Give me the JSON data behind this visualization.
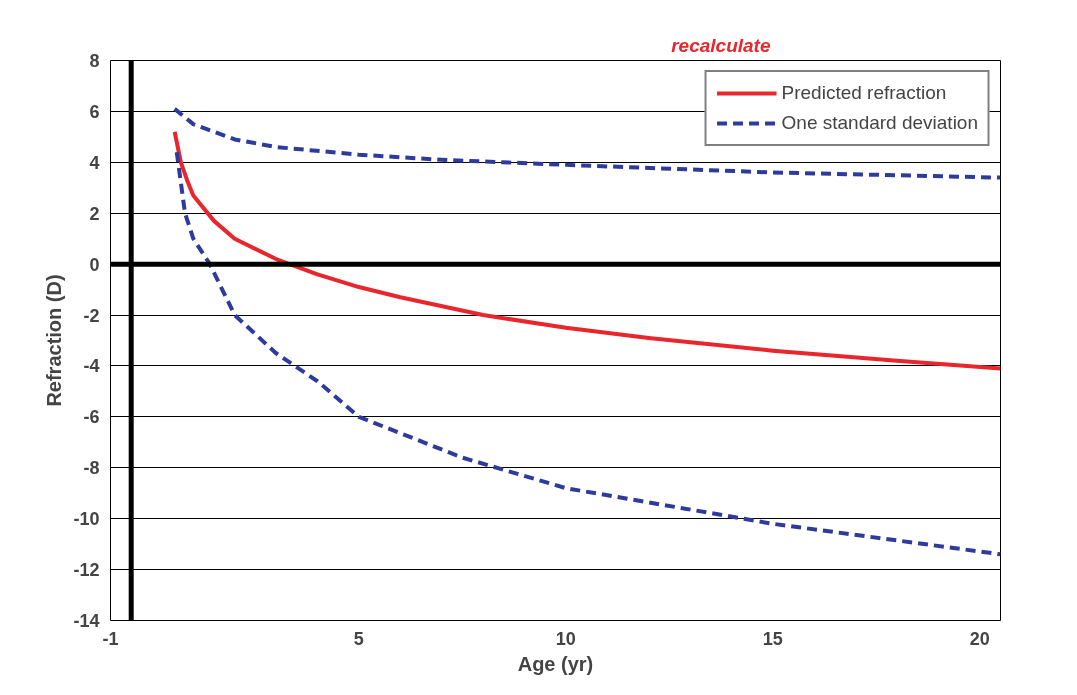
{
  "chart_data": {
    "type": "line",
    "xlabel": "Age (yr)",
    "ylabel": "Refraction (D)",
    "annotations": [
      "recalculate"
    ],
    "xlim": [
      -1,
      20.5
    ],
    "xticks": [
      -1,
      5,
      10,
      15,
      20
    ],
    "ylim": [
      -14,
      8
    ],
    "yticks": [
      -14,
      -12,
      -10,
      -8,
      -6,
      -4,
      -2,
      0,
      2,
      4,
      6,
      8
    ],
    "grid": "y",
    "legend": "top right",
    "marker": "none",
    "ref_lines": [
      {
        "axis": "y",
        "value": 0,
        "label": null,
        "color": "#000000"
      },
      {
        "axis": "x",
        "value": -0.5,
        "label": null,
        "color": "#000000"
      }
    ],
    "series": [
      {
        "name": "Predicted refraction",
        "color": "#e8262b",
        "line_style": "solid",
        "x": [
          0.55,
          0.7,
          0.85,
          1,
          1.5,
          2,
          3,
          4,
          5,
          6,
          8,
          10,
          12,
          15,
          18,
          20.5
        ],
        "values": [
          5.2,
          4.0,
          3.3,
          2.7,
          1.7,
          1.0,
          0.2,
          -0.4,
          -0.9,
          -1.3,
          -2.0,
          -2.5,
          -2.9,
          -3.4,
          -3.8,
          -4.1
        ]
      },
      {
        "name": "One standard deviation",
        "color": "#2e3a9c",
        "line_style": "dashed",
        "x": [
          0.55,
          1,
          2,
          3,
          5,
          7,
          10,
          15,
          20.5
        ],
        "values": [
          6.1,
          5.5,
          4.9,
          4.6,
          4.3,
          4.1,
          3.9,
          3.6,
          3.4
        ]
      },
      {
        "name": null,
        "color": "#2e3a9c",
        "line_style": "dashed",
        "x": [
          0.6,
          0.8,
          1,
          1.4,
          2,
          3,
          4,
          5,
          7.5,
          10,
          15,
          20.5
        ],
        "values": [
          4.4,
          2.0,
          1.0,
          0.0,
          -2.0,
          -3.5,
          -4.6,
          -6.0,
          -7.6,
          -8.8,
          -10.2,
          -11.4
        ]
      }
    ]
  }
}
